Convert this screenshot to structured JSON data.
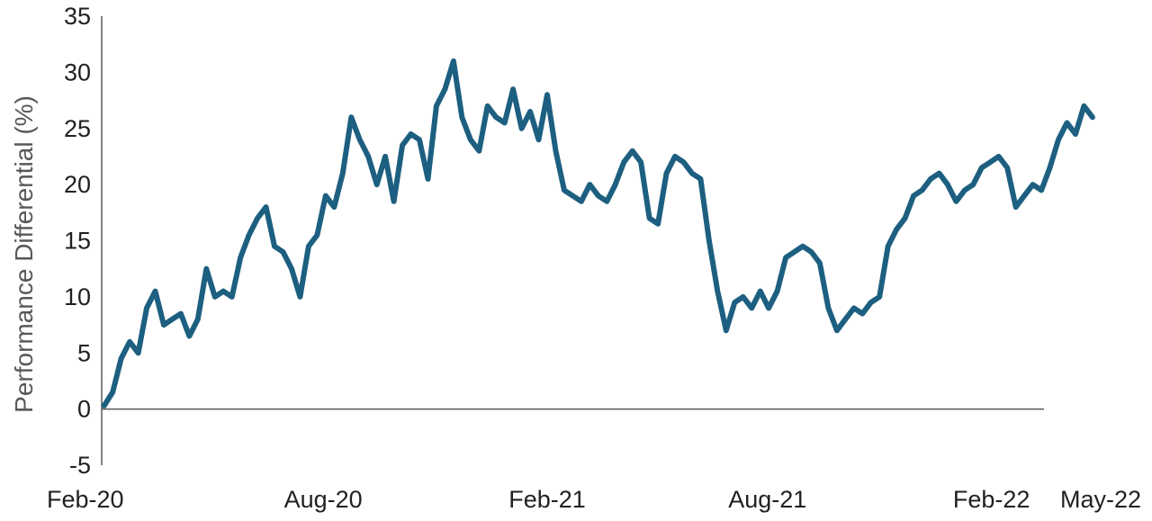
{
  "chart_data": {
    "type": "line",
    "title": "",
    "xlabel": "",
    "ylabel": "Performance Differential (%)",
    "ylim": [
      -5,
      35
    ],
    "yticks": [
      -5,
      0,
      5,
      10,
      15,
      20,
      25,
      30,
      35
    ],
    "xlim": [
      "2020-02",
      "2022-05"
    ],
    "x_tick_labels": [
      {
        "label": "Feb-20",
        "date": "2020-02"
      },
      {
        "label": "Aug-20",
        "date": "2020-08"
      },
      {
        "label": "Feb-21",
        "date": "2021-02"
      },
      {
        "label": "Aug-21",
        "date": "2021-08"
      },
      {
        "label": "Feb-22",
        "date": "2022-02"
      },
      {
        "label": "May-22",
        "date": "2022-05"
      }
    ],
    "grid": false,
    "legend": "none",
    "series_color": "#1d5f80",
    "series": [
      {
        "x": [
          "2020-02-03",
          "2020-02-10",
          "2020-02-17",
          "2020-02-24",
          "2020-03-02",
          "2020-03-09",
          "2020-03-16",
          "2020-03-23",
          "2020-03-30",
          "2020-04-06",
          "2020-04-13",
          "2020-04-20",
          "2020-04-27",
          "2020-05-04",
          "2020-05-11",
          "2020-05-18",
          "2020-05-25",
          "2020-06-01",
          "2020-06-08",
          "2020-06-15",
          "2020-06-22",
          "2020-06-29",
          "2020-07-06",
          "2020-07-13",
          "2020-07-20",
          "2020-07-27",
          "2020-08-03",
          "2020-08-10",
          "2020-08-17",
          "2020-08-24",
          "2020-08-31",
          "2020-09-07",
          "2020-09-14",
          "2020-09-21",
          "2020-09-28",
          "2020-10-05",
          "2020-10-12",
          "2020-10-19",
          "2020-10-26",
          "2020-11-02",
          "2020-11-09",
          "2020-11-16",
          "2020-11-23",
          "2020-11-30",
          "2020-12-07",
          "2020-12-14",
          "2020-12-21",
          "2020-12-28",
          "2021-01-04",
          "2021-01-11",
          "2021-01-18",
          "2021-01-25",
          "2021-02-01",
          "2021-02-08",
          "2021-02-15",
          "2021-02-22",
          "2021-03-01",
          "2021-03-08",
          "2021-03-15",
          "2021-03-22",
          "2021-03-29",
          "2021-04-05",
          "2021-04-12",
          "2021-04-19",
          "2021-04-26",
          "2021-05-03",
          "2021-05-10",
          "2021-05-17",
          "2021-05-24",
          "2021-05-31",
          "2021-06-07",
          "2021-06-14",
          "2021-06-21",
          "2021-06-28",
          "2021-07-05",
          "2021-07-12",
          "2021-07-19",
          "2021-07-26",
          "2021-08-02",
          "2021-08-09",
          "2021-08-16",
          "2021-08-23",
          "2021-08-30",
          "2021-09-06",
          "2021-09-13",
          "2021-09-20",
          "2021-09-27",
          "2021-10-04",
          "2021-10-11",
          "2021-10-18",
          "2021-10-25",
          "2021-11-01",
          "2021-11-08",
          "2021-11-15",
          "2021-11-22",
          "2021-11-29",
          "2021-12-06",
          "2021-12-13",
          "2021-12-20",
          "2021-12-27",
          "2022-01-03",
          "2022-01-10",
          "2022-01-17",
          "2022-01-24",
          "2022-01-31",
          "2022-02-07",
          "2022-02-14",
          "2022-02-21",
          "2022-02-28",
          "2022-03-07",
          "2022-03-14",
          "2022-03-21",
          "2022-03-28",
          "2022-04-04",
          "2022-04-11",
          "2022-04-18",
          "2022-04-25"
        ],
        "values": [
          0.3,
          1.5,
          4.5,
          6.0,
          5.0,
          9.0,
          10.5,
          7.5,
          8.0,
          8.5,
          6.5,
          8.0,
          12.5,
          10.0,
          10.5,
          10.0,
          13.5,
          15.5,
          17.0,
          18.0,
          14.5,
          14.0,
          12.5,
          10.0,
          14.5,
          15.5,
          19.0,
          18.0,
          21.0,
          26.0,
          24.0,
          22.5,
          20.0,
          22.5,
          18.5,
          23.5,
          24.5,
          24.0,
          20.5,
          27.0,
          28.5,
          31.0,
          26.0,
          24.0,
          23.0,
          27.0,
          26.0,
          25.5,
          28.5,
          25.0,
          26.5,
          24.0,
          28.0,
          23.0,
          19.5,
          19.0,
          18.5,
          20.0,
          19.0,
          18.5,
          20.0,
          22.0,
          23.0,
          22.0,
          17.0,
          16.5,
          21.0,
          22.5,
          22.0,
          21.0,
          20.5,
          15.0,
          10.5,
          7.0,
          9.5,
          10.0,
          9.0,
          10.5,
          9.0,
          10.5,
          13.5,
          14.0,
          14.5,
          14.0,
          13.0,
          9.0,
          7.0,
          8.0,
          9.0,
          8.5,
          9.5,
          10.0,
          14.5,
          16.0,
          17.0,
          19.0,
          19.5,
          20.5,
          21.0,
          20.0,
          18.5,
          19.5,
          20.0,
          21.5,
          22.0,
          22.5,
          21.5,
          18.0,
          19.0,
          20.0,
          19.5,
          21.5,
          24.0,
          25.5,
          24.5,
          27.0,
          26.0
        ]
      }
    ]
  }
}
